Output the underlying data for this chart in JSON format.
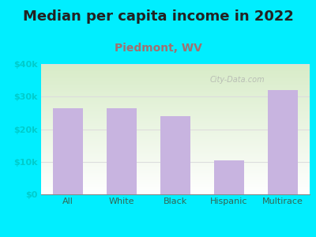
{
  "title": "Median per capita income in 2022",
  "subtitle": "Piedmont, WV",
  "categories": [
    "All",
    "White",
    "Black",
    "Hispanic",
    "Multirace"
  ],
  "values": [
    26500,
    26500,
    24000,
    10500,
    32000
  ],
  "bar_color": "#c8b4e0",
  "title_fontsize": 13,
  "subtitle_fontsize": 10,
  "title_color": "#222222",
  "subtitle_color": "#a07070",
  "ytick_color": "#00cccc",
  "xtick_color": "#336655",
  "background_outer": "#00eeff",
  "bg_gradient_top": "#d8ecc8",
  "bg_gradient_bottom": "#ffffff",
  "ylim": [
    0,
    40000
  ],
  "yticks": [
    0,
    10000,
    20000,
    30000,
    40000
  ],
  "ytick_labels": [
    "$0",
    "$10k",
    "$20k",
    "$30k",
    "$40k"
  ],
  "watermark": "City-Data.com",
  "watermark_color": "#aaaaaa",
  "grid_color": "#dddddd"
}
